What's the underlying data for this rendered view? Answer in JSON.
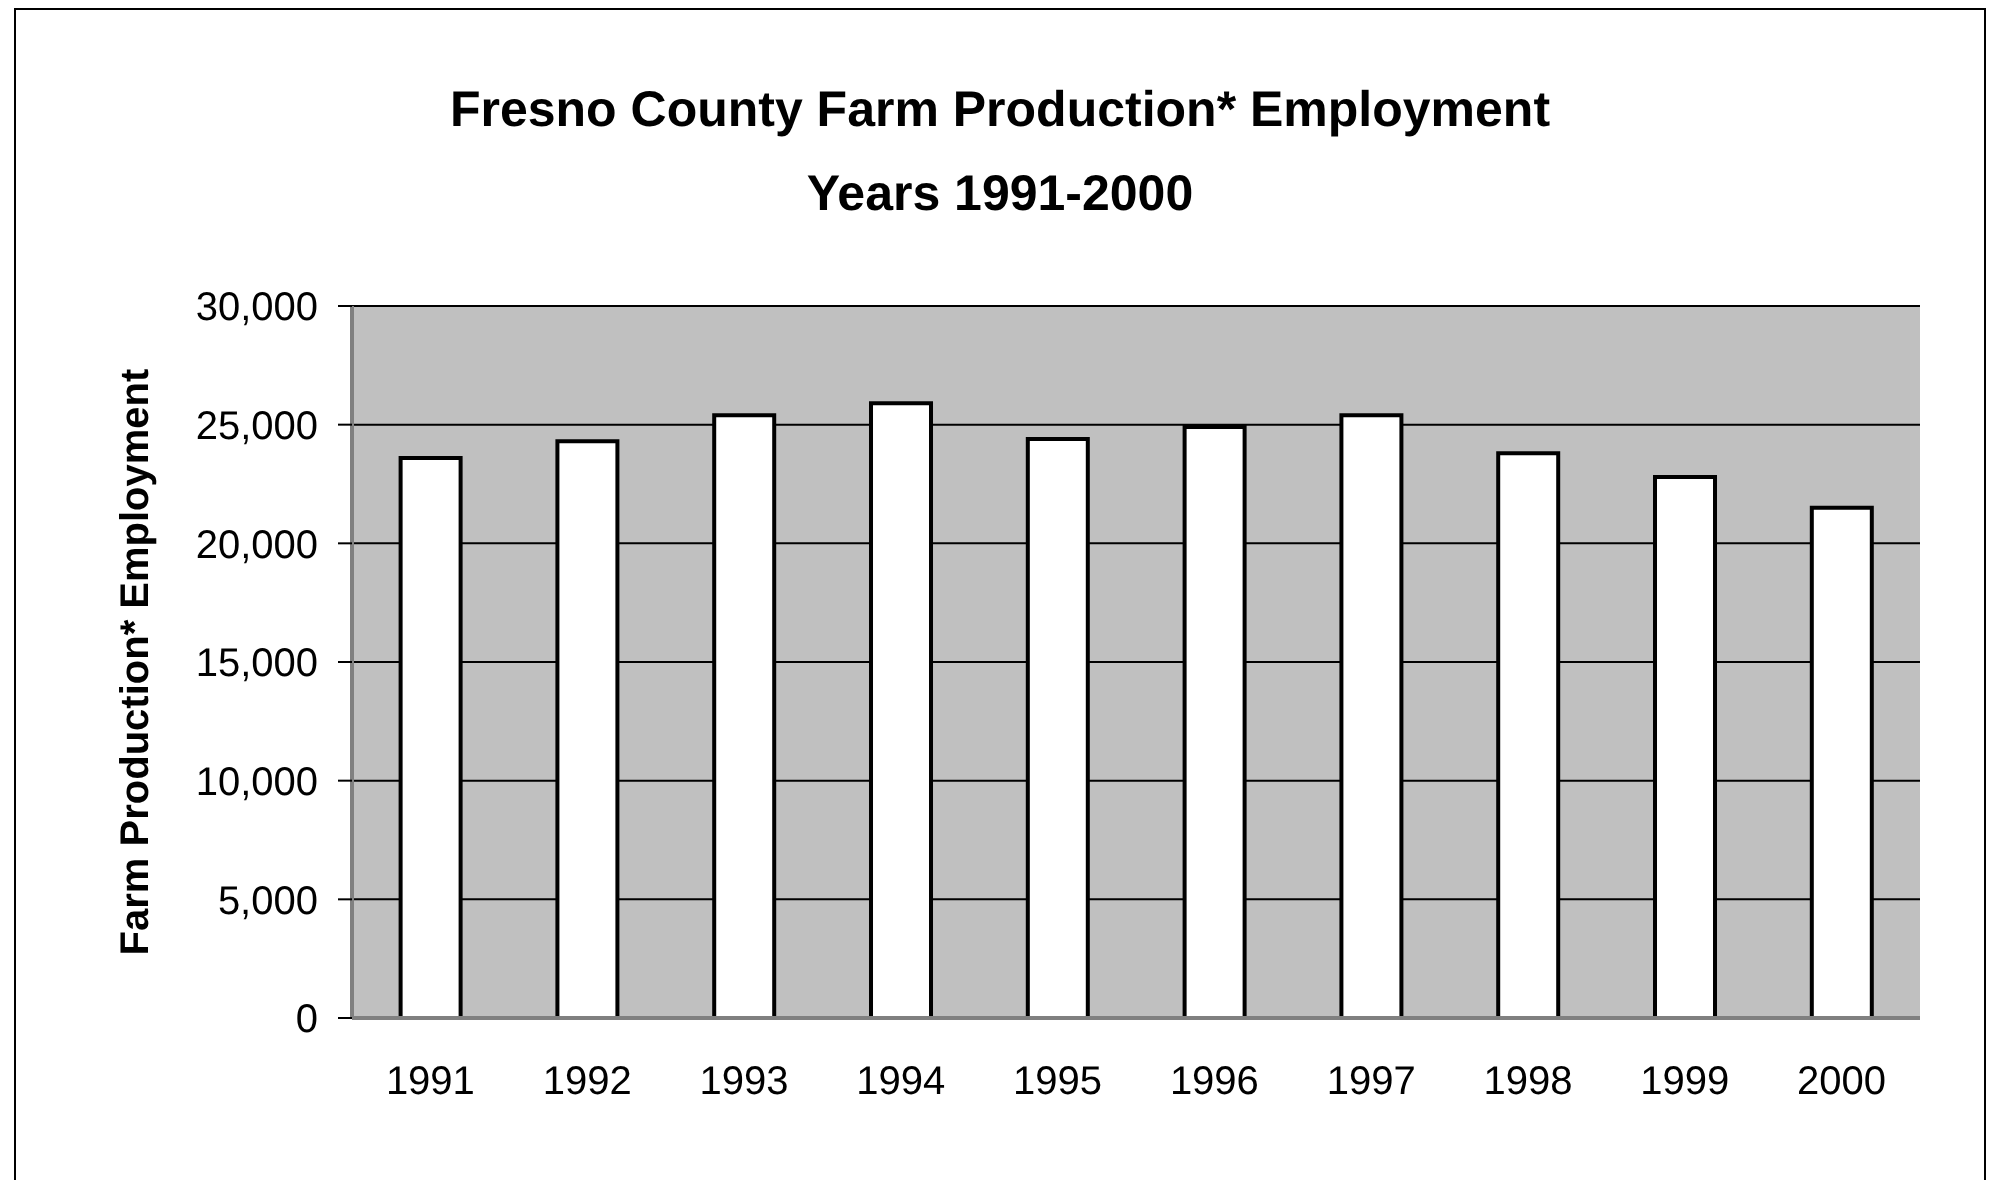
{
  "chart_data": {
    "type": "bar",
    "title": "Fresno County Farm Production* Employment",
    "subtitle": "Years 1991-2000",
    "ylabel": "Farm Production* Employment",
    "categories": [
      "1991",
      "1992",
      "1993",
      "1994",
      "1995",
      "1996",
      "1997",
      "1998",
      "1999",
      "2000"
    ],
    "values": [
      23600,
      24300,
      25400,
      25900,
      24400,
      24900,
      25400,
      23800,
      22800,
      21500
    ],
    "color": "#ffffff",
    "ylim": [
      0,
      30000
    ],
    "yticks": [
      0,
      {
        "value": 5000,
        "label": "5,000"
      },
      {
        "value": 10000,
        "label": "10,000"
      },
      {
        "value": 15000,
        "label": "15,000"
      },
      {
        "value": 20000,
        "label": "20,000"
      },
      {
        "value": 25000,
        "label": "25,000"
      },
      {
        "value": 30000,
        "label": "30,000"
      }
    ],
    "grid": "y"
  }
}
